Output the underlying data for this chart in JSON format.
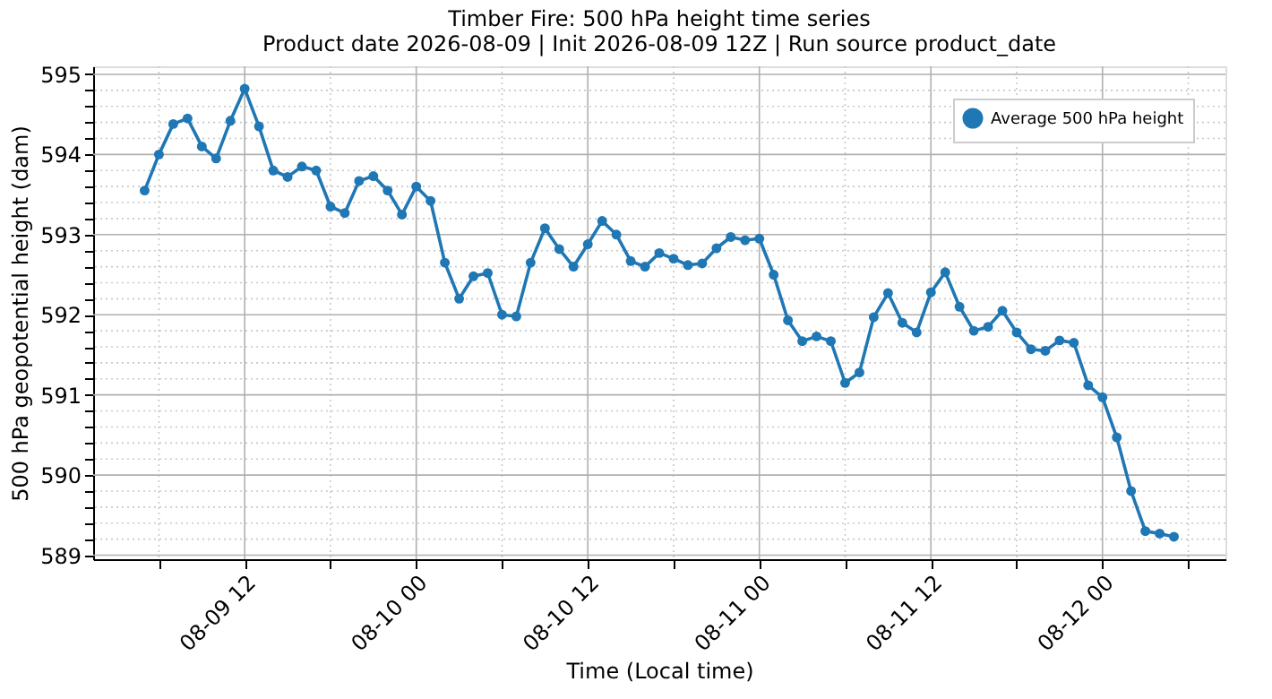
{
  "chart_data": {
    "type": "line",
    "title": "Timber Fire: 500 hPa height time series",
    "subtitle": "Product date 2026-08-09 | Init 2026-08-09 12Z | Run source product_date",
    "xlabel": "Time (Local time)",
    "ylabel": "500 hPa geopotential height (dam)",
    "x": [
      "2026-08-09T05:00",
      "2026-08-09T06:00",
      "2026-08-09T07:00",
      "2026-08-09T08:00",
      "2026-08-09T09:00",
      "2026-08-09T10:00",
      "2026-08-09T11:00",
      "2026-08-09T12:00",
      "2026-08-09T13:00",
      "2026-08-09T14:00",
      "2026-08-09T15:00",
      "2026-08-09T16:00",
      "2026-08-09T17:00",
      "2026-08-09T18:00",
      "2026-08-09T19:00",
      "2026-08-09T20:00",
      "2026-08-09T21:00",
      "2026-08-09T22:00",
      "2026-08-09T23:00",
      "2026-08-10T00:00",
      "2026-08-10T01:00",
      "2026-08-10T02:00",
      "2026-08-10T03:00",
      "2026-08-10T04:00",
      "2026-08-10T05:00",
      "2026-08-10T06:00",
      "2026-08-10T07:00",
      "2026-08-10T08:00",
      "2026-08-10T09:00",
      "2026-08-10T10:00",
      "2026-08-10T11:00",
      "2026-08-10T12:00",
      "2026-08-10T13:00",
      "2026-08-10T14:00",
      "2026-08-10T15:00",
      "2026-08-10T16:00",
      "2026-08-10T17:00",
      "2026-08-10T18:00",
      "2026-08-10T19:00",
      "2026-08-10T20:00",
      "2026-08-10T21:00",
      "2026-08-10T22:00",
      "2026-08-10T23:00",
      "2026-08-11T00:00",
      "2026-08-11T01:00",
      "2026-08-11T02:00",
      "2026-08-11T03:00",
      "2026-08-11T04:00",
      "2026-08-11T05:00",
      "2026-08-11T06:00",
      "2026-08-11T07:00",
      "2026-08-11T08:00",
      "2026-08-11T09:00",
      "2026-08-11T10:00",
      "2026-08-11T11:00",
      "2026-08-11T12:00",
      "2026-08-11T13:00",
      "2026-08-11T14:00",
      "2026-08-11T15:00",
      "2026-08-11T16:00",
      "2026-08-11T17:00",
      "2026-08-11T18:00",
      "2026-08-11T19:00",
      "2026-08-11T20:00",
      "2026-08-11T21:00",
      "2026-08-11T22:00",
      "2026-08-11T23:00",
      "2026-08-12T00:00",
      "2026-08-12T01:00",
      "2026-08-12T02:00",
      "2026-08-12T03:00",
      "2026-08-12T04:00",
      "2026-08-12T05:00"
    ],
    "series": [
      {
        "name": "Average 500 hPa height",
        "color": "#1f77b4",
        "values": [
          593.55,
          594.0,
          594.38,
          594.45,
          594.1,
          593.95,
          594.42,
          594.82,
          594.35,
          593.8,
          593.72,
          593.85,
          593.8,
          593.35,
          593.27,
          593.67,
          593.73,
          593.55,
          593.25,
          593.6,
          593.42,
          592.65,
          592.2,
          592.48,
          592.52,
          592.0,
          591.98,
          592.65,
          593.08,
          592.82,
          592.6,
          592.88,
          593.17,
          593.0,
          592.67,
          592.6,
          592.77,
          592.7,
          592.62,
          592.64,
          592.83,
          592.97,
          592.93,
          592.95,
          592.5,
          591.93,
          591.67,
          591.73,
          591.67,
          591.15,
          591.28,
          591.97,
          592.27,
          591.9,
          591.78,
          592.28,
          592.53,
          592.1,
          591.8,
          591.85,
          592.05,
          591.78,
          591.57,
          591.55,
          591.68,
          591.65,
          591.12,
          590.97,
          590.47,
          589.8,
          589.3,
          589.27,
          589.23
        ]
      }
    ],
    "xlim": [
      "2026-08-09T01:24",
      "2026-08-12T08:36"
    ],
    "xticks": [
      {
        "value": "2026-08-09T06:00",
        "label": null
      },
      {
        "value": "2026-08-09T12:00",
        "label": "08-09 12"
      },
      {
        "value": "2026-08-09T18:00",
        "label": null
      },
      {
        "value": "2026-08-10T00:00",
        "label": "08-10 00"
      },
      {
        "value": "2026-08-10T06:00",
        "label": null
      },
      {
        "value": "2026-08-10T12:00",
        "label": "08-10 12"
      },
      {
        "value": "2026-08-10T18:00",
        "label": null
      },
      {
        "value": "2026-08-11T00:00",
        "label": "08-11 00"
      },
      {
        "value": "2026-08-11T06:00",
        "label": null
      },
      {
        "value": "2026-08-11T12:00",
        "label": "08-11 12"
      },
      {
        "value": "2026-08-11T18:00",
        "label": null
      },
      {
        "value": "2026-08-12T00:00",
        "label": "08-12 00"
      },
      {
        "value": "2026-08-12T06:00",
        "label": null
      }
    ],
    "ylim": [
      588.95,
      595.1
    ],
    "yticks": [
      589,
      {
        "value": 589.2,
        "label": null
      },
      {
        "value": 589.4,
        "label": null
      },
      {
        "value": 589.6,
        "label": null
      },
      {
        "value": 589.8,
        "label": null
      },
      590,
      {
        "value": 590.2,
        "label": null
      },
      {
        "value": 590.4,
        "label": null
      },
      {
        "value": 590.6,
        "label": null
      },
      {
        "value": 590.8,
        "label": null
      },
      591,
      {
        "value": 591.2,
        "label": null
      },
      {
        "value": 591.4,
        "label": null
      },
      {
        "value": 591.6,
        "label": null
      },
      {
        "value": 591.8,
        "label": null
      },
      592,
      {
        "value": 592.2,
        "label": null
      },
      {
        "value": 592.4,
        "label": null
      },
      {
        "value": 592.6,
        "label": null
      },
      {
        "value": 592.8,
        "label": null
      },
      593,
      {
        "value": 593.2,
        "label": null
      },
      {
        "value": 593.4,
        "label": null
      },
      {
        "value": 593.6,
        "label": null
      },
      {
        "value": 593.8,
        "label": null
      },
      594,
      {
        "value": 594.2,
        "label": null
      },
      {
        "value": 594.4,
        "label": null
      },
      {
        "value": 594.6,
        "label": null
      },
      {
        "value": 594.8,
        "label": null
      },
      595
    ],
    "grid": true,
    "legend": "top right",
    "marker": "circle",
    "line_style": "solid"
  }
}
